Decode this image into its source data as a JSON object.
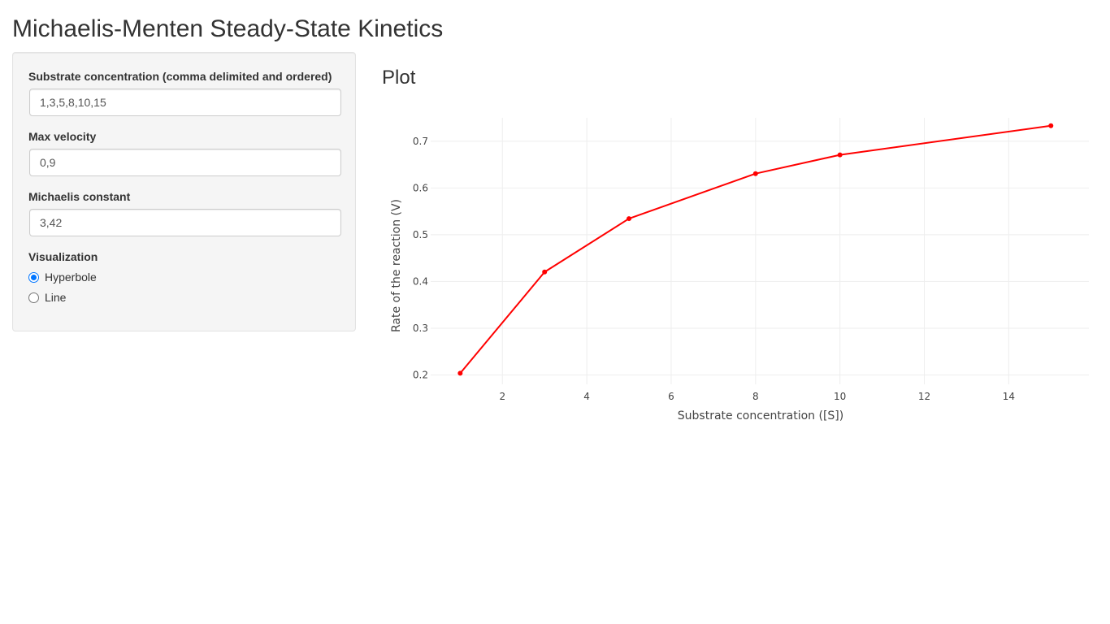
{
  "page": {
    "title": "Michaelis-Menten Steady-State Kinetics"
  },
  "sidebar": {
    "substrate": {
      "label": "Substrate concentration (comma delimited and ordered)",
      "value": "1,3,5,8,10,15"
    },
    "max_velocity": {
      "label": "Max velocity",
      "value": "0,9"
    },
    "michaelis_constant": {
      "label": "Michaelis constant",
      "value": "3,42"
    },
    "visualization": {
      "label": "Visualization",
      "options": [
        {
          "label": "Hyperbole",
          "checked": true
        },
        {
          "label": "Line",
          "checked": false
        }
      ]
    }
  },
  "main": {
    "heading": "Plot"
  },
  "colors": {
    "accent": "#0075ff",
    "series": "#ff0000"
  },
  "chart_data": {
    "type": "line",
    "title": "",
    "xlabel": "Substrate concentration ([S])",
    "ylabel": "Rate of the reaction (V)",
    "xlim": [
      0.3,
      15.9
    ],
    "ylim": [
      0.18,
      0.75
    ],
    "xticks": [
      2,
      4,
      6,
      8,
      10,
      12,
      14
    ],
    "yticks": [
      0.2,
      0.3,
      0.4,
      0.5,
      0.6,
      0.7
    ],
    "grid": true,
    "series": [
      {
        "x": [
          1,
          3,
          5,
          8,
          10,
          15
        ],
        "y": [
          0.2036,
          0.4202,
          0.5344,
          0.6306,
          0.6707,
          0.733
        ],
        "color": "#ff0000",
        "markers": true
      }
    ]
  }
}
